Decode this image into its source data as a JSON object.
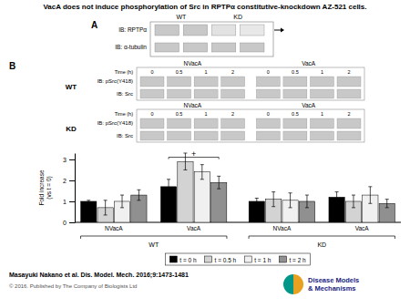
{
  "chart_data": {
    "type": "bar",
    "title": "VacA does not induce phosphorylation of Src in RPTPα constitutive-knockdown AZ-521 cells.",
    "categories": [
      "NVacA",
      "VacA",
      "NVacA",
      "VacA"
    ],
    "section_labels": [
      "WT",
      "KD"
    ],
    "series": [
      {
        "name": "t = 0 h",
        "color": "#000000",
        "values": [
          1.0,
          1.7,
          1.0,
          1.2
        ],
        "errors": [
          0.05,
          0.35,
          0.15,
          0.25
        ]
      },
      {
        "name": "t = 0.5 h",
        "color": "#d3d3d3",
        "values": [
          0.7,
          2.9,
          1.1,
          1.0
        ],
        "errors": [
          0.35,
          0.4,
          0.35,
          0.3
        ]
      },
      {
        "name": "t = 1 h",
        "color": "#f0f0f0",
        "values": [
          1.0,
          2.4,
          1.05,
          1.3
        ],
        "errors": [
          0.3,
          0.35,
          0.35,
          0.4
        ]
      },
      {
        "name": "t = 2 h",
        "color": "#909090",
        "values": [
          1.3,
          1.9,
          1.0,
          0.9
        ],
        "errors": [
          0.25,
          0.3,
          0.3,
          0.2
        ]
      }
    ],
    "ylabel": "Fold increase\n(vs t = 0)",
    "ylim": [
      0,
      3.3
    ],
    "yticks": [
      0,
      1,
      2,
      3
    ],
    "legend": "bottom",
    "annotations": [
      {
        "text": "+",
        "category": 1,
        "y": 3.1
      }
    ],
    "blots": {
      "color": "#c8c8c8",
      "panel_a": {
        "label": "A",
        "columns": [
          "WT",
          "KD"
        ],
        "rows": [
          "IB: RPTPα",
          "IB: α-tubulin"
        ],
        "colors": [
          "#c8c8c8",
          "#c8c8c8",
          "#e2e2e2",
          "#e8e8e8"
        ]
      },
      "panel_b": {
        "label": "B",
        "columns": [
          "NVacA",
          "VacA"
        ],
        "time_title": "Time (h)",
        "times": [
          "0",
          "0.5",
          "1",
          "2",
          "0",
          "0.5",
          "1",
          "2"
        ],
        "rows": [
          "IB: pSrc(Y418)",
          "IB: Src"
        ],
        "cell_lines": [
          "WT",
          "KD"
        ]
      }
    },
    "citation": "Masayuki Nakano et al. Dis. Model. Mech. 2016;9:1473-1481",
    "copyright": "© 2016. Published by The Company of Biologists Ltd",
    "logo": {
      "lines": [
        "Disease Models",
        "& Mechanisms"
      ],
      "colors": [
        "#009688",
        "#e8a020"
      ],
      "text_color": "#1a237e"
    }
  }
}
